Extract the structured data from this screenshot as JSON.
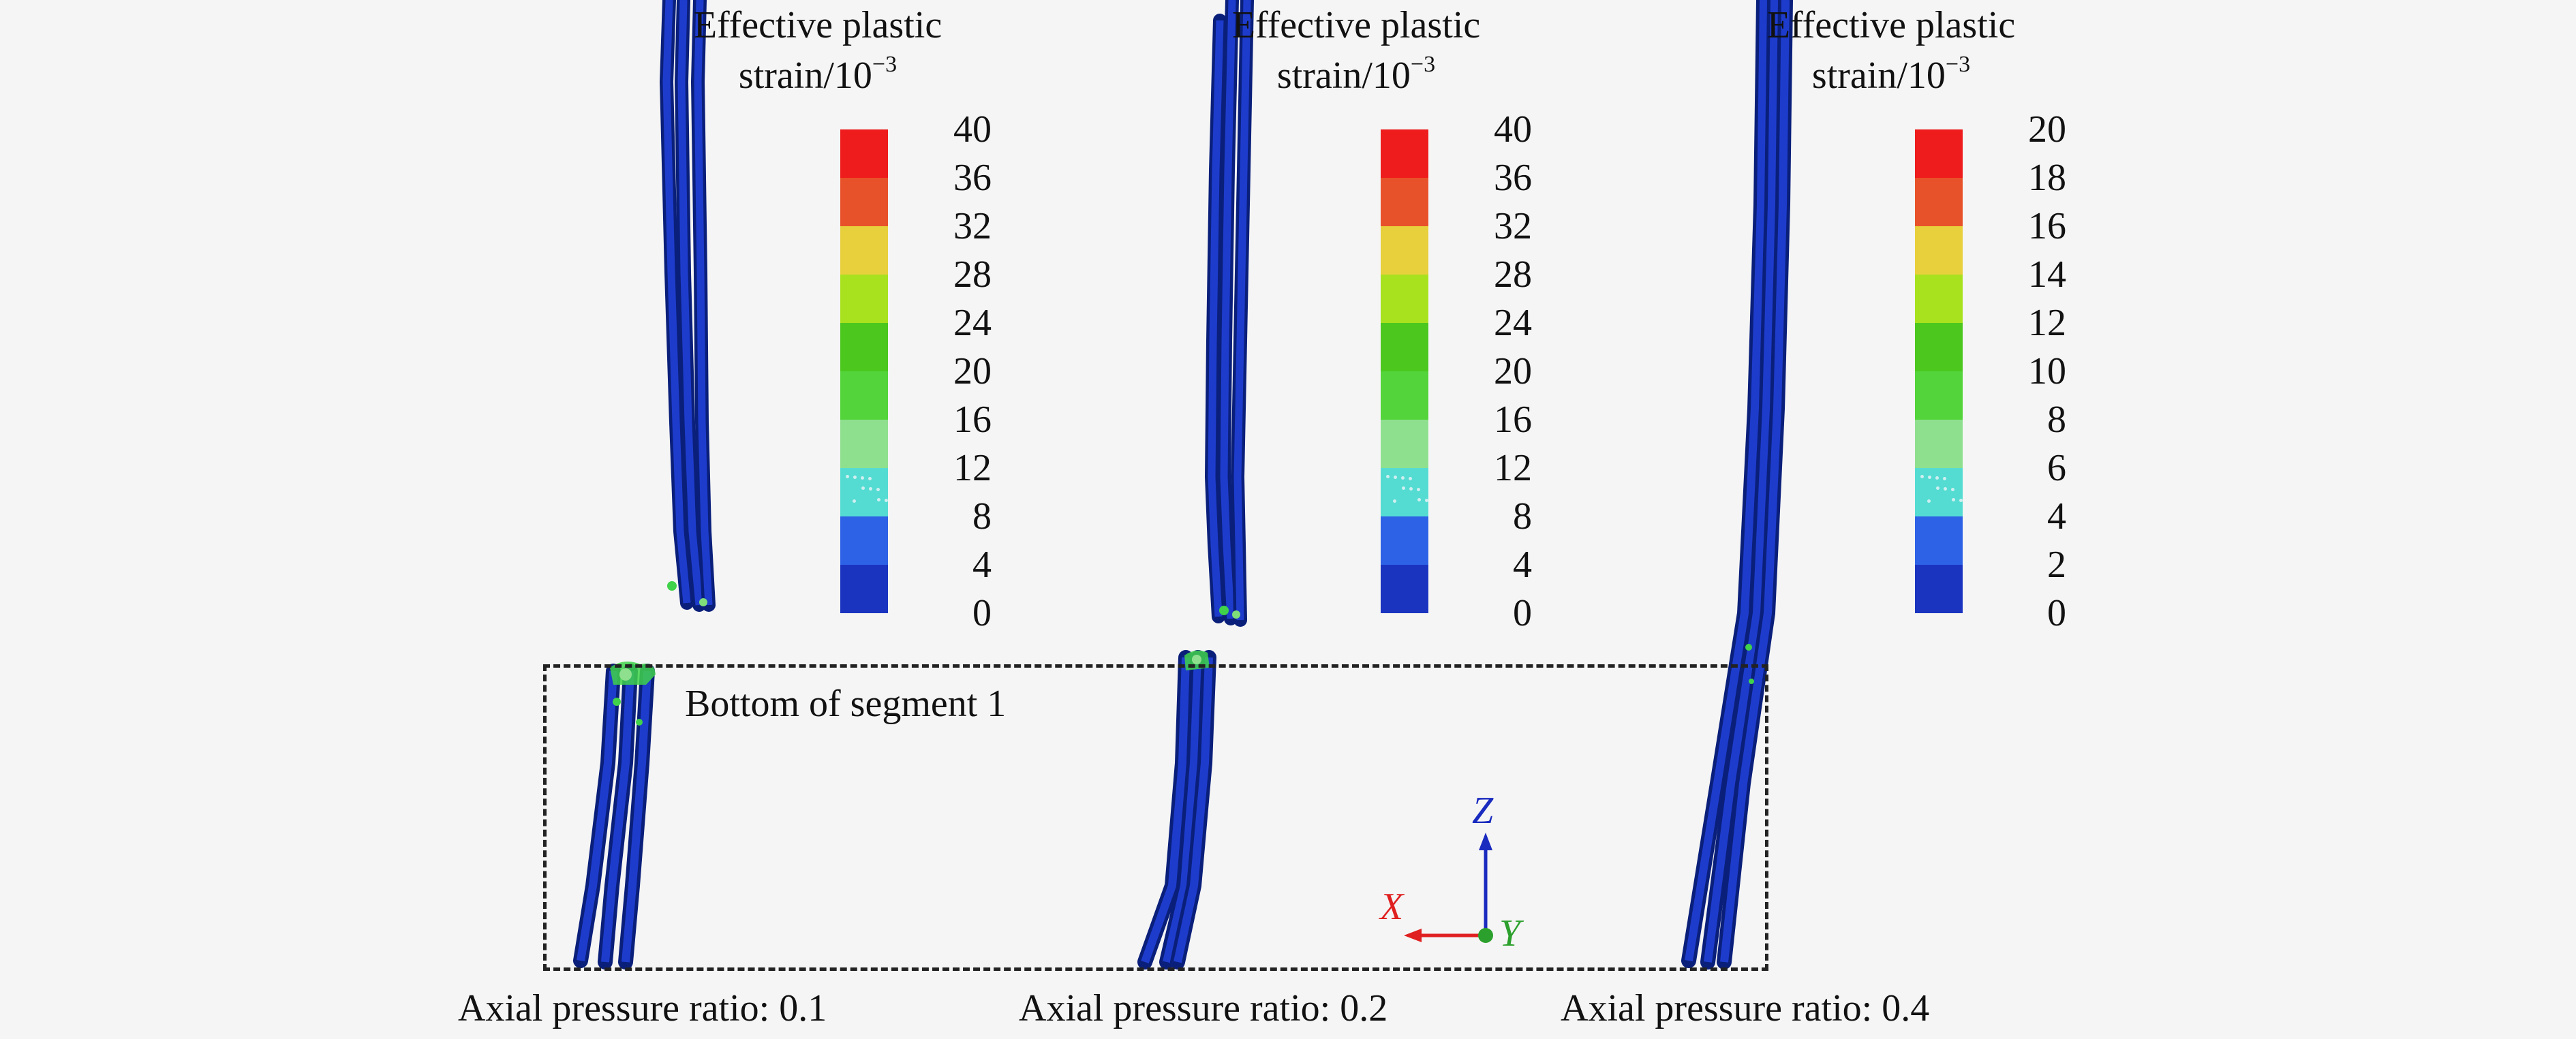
{
  "legend_title_line1": "Effective plastic",
  "legend_title_line2": "strain/10",
  "legend_title_exponent": "−3",
  "colorbar_colors": [
    "#ee1c1c",
    "#e8522a",
    "#e8cf3c",
    "#a8e21e",
    "#4cc71e",
    "#52d43a",
    "#8fe08e",
    "#55dcd2",
    "#2d62e6",
    "#1a34c0"
  ],
  "legends": [
    {
      "ticks": [
        "40",
        "36",
        "32",
        "28",
        "24",
        "20",
        "16",
        "12",
        "8",
        "4",
        "0"
      ]
    },
    {
      "ticks": [
        "40",
        "36",
        "32",
        "28",
        "24",
        "20",
        "16",
        "12",
        "8",
        "4",
        "0"
      ]
    },
    {
      "ticks": [
        "20",
        "18",
        "16",
        "14",
        "12",
        "10",
        "8",
        "6",
        "4",
        "2",
        "0"
      ]
    }
  ],
  "box_label": "Bottom of segment 1",
  "captions": [
    "Axial pressure ratio: 0.1",
    "Axial pressure ratio: 0.2",
    "Axial pressure ratio: 0.4"
  ],
  "axes": {
    "z": "Z",
    "x": "X",
    "y": "Y",
    "z_color": "#1a2bbf",
    "x_color": "#e02020",
    "y_color": "#2ca02c"
  }
}
